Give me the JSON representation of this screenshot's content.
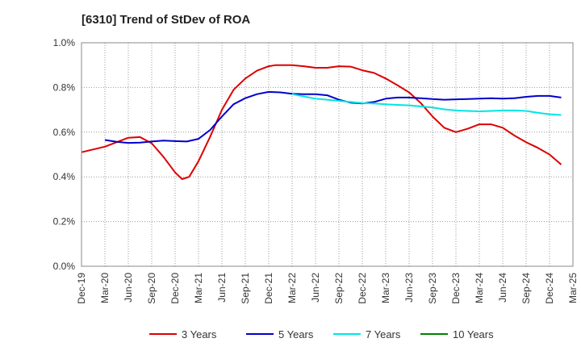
{
  "chart_data": {
    "type": "line",
    "title": "[6310]  Trend of StDev of ROA",
    "xlabel": "",
    "ylabel": "",
    "x_ticks": [
      "Dec-19",
      "Mar-20",
      "Jun-20",
      "Sep-20",
      "Dec-20",
      "Mar-21",
      "Jun-21",
      "Sep-21",
      "Dec-21",
      "Mar-22",
      "Jun-22",
      "Sep-22",
      "Dec-22",
      "Mar-23",
      "Jun-23",
      "Sep-23",
      "Dec-23",
      "Mar-24",
      "Jun-24",
      "Sep-24",
      "Dec-24",
      "Mar-25"
    ],
    "y_ticks": [
      "0.0%",
      "0.2%",
      "0.4%",
      "0.6%",
      "0.8%",
      "1.0%"
    ],
    "ylim": [
      0,
      1.0
    ],
    "grid": true,
    "legend_position": "bottom",
    "series": [
      {
        "name": "3 Years",
        "color": "#dd0000",
        "points": [
          [
            0,
            0.51
          ],
          [
            1,
            0.535
          ],
          [
            2,
            0.575
          ],
          [
            2.5,
            0.578
          ],
          [
            3,
            0.55
          ],
          [
            3.5,
            0.49
          ],
          [
            4,
            0.42
          ],
          [
            4.3,
            0.39
          ],
          [
            4.6,
            0.4
          ],
          [
            5,
            0.47
          ],
          [
            5.5,
            0.58
          ],
          [
            6,
            0.7
          ],
          [
            6.5,
            0.79
          ],
          [
            7,
            0.84
          ],
          [
            7.5,
            0.875
          ],
          [
            8,
            0.895
          ],
          [
            8.3,
            0.9
          ],
          [
            8.6,
            0.9
          ],
          [
            9,
            0.9
          ],
          [
            9.5,
            0.895
          ],
          [
            10,
            0.888
          ],
          [
            10.5,
            0.888
          ],
          [
            11,
            0.895
          ],
          [
            11.5,
            0.893
          ],
          [
            12,
            0.877
          ],
          [
            12.5,
            0.865
          ],
          [
            13,
            0.84
          ],
          [
            13.5,
            0.81
          ],
          [
            14,
            0.778
          ],
          [
            14.5,
            0.73
          ],
          [
            15,
            0.67
          ],
          [
            15.5,
            0.62
          ],
          [
            16,
            0.6
          ],
          [
            16.5,
            0.615
          ],
          [
            17,
            0.635
          ],
          [
            17.5,
            0.635
          ],
          [
            18,
            0.62
          ],
          [
            18.5,
            0.585
          ],
          [
            19,
            0.555
          ],
          [
            19.5,
            0.53
          ],
          [
            20,
            0.5
          ],
          [
            20.5,
            0.455
          ]
        ]
      },
      {
        "name": "5 Years",
        "color": "#0000cc",
        "points": [
          [
            1,
            0.565
          ],
          [
            1.5,
            0.557
          ],
          [
            2,
            0.552
          ],
          [
            2.5,
            0.553
          ],
          [
            3,
            0.558
          ],
          [
            3.5,
            0.562
          ],
          [
            4,
            0.56
          ],
          [
            4.5,
            0.558
          ],
          [
            5,
            0.57
          ],
          [
            5.5,
            0.61
          ],
          [
            6,
            0.67
          ],
          [
            6.5,
            0.725
          ],
          [
            7,
            0.752
          ],
          [
            7.5,
            0.77
          ],
          [
            8,
            0.78
          ],
          [
            8.5,
            0.778
          ],
          [
            9,
            0.772
          ],
          [
            9.5,
            0.77
          ],
          [
            10,
            0.77
          ],
          [
            10.5,
            0.765
          ],
          [
            11,
            0.745
          ],
          [
            11.5,
            0.732
          ],
          [
            12,
            0.728
          ],
          [
            12.5,
            0.735
          ],
          [
            13,
            0.75
          ],
          [
            13.5,
            0.755
          ],
          [
            14,
            0.755
          ],
          [
            14.5,
            0.752
          ],
          [
            15,
            0.748
          ],
          [
            15.5,
            0.745
          ],
          [
            16,
            0.747
          ],
          [
            16.5,
            0.748
          ],
          [
            17,
            0.75
          ],
          [
            17.5,
            0.752
          ],
          [
            18,
            0.75
          ],
          [
            18.5,
            0.752
          ],
          [
            19,
            0.758
          ],
          [
            19.5,
            0.762
          ],
          [
            20,
            0.762
          ],
          [
            20.5,
            0.755
          ]
        ]
      },
      {
        "name": "7 Years",
        "color": "#00e5e5",
        "points": [
          [
            9,
            0.77
          ],
          [
            9.5,
            0.76
          ],
          [
            10,
            0.75
          ],
          [
            10.5,
            0.745
          ],
          [
            11,
            0.74
          ],
          [
            11.5,
            0.735
          ],
          [
            12,
            0.73
          ],
          [
            12.5,
            0.728
          ],
          [
            13,
            0.725
          ],
          [
            13.5,
            0.722
          ],
          [
            14,
            0.72
          ],
          [
            14.5,
            0.715
          ],
          [
            15,
            0.71
          ],
          [
            15.5,
            0.702
          ],
          [
            16,
            0.697
          ],
          [
            16.5,
            0.695
          ],
          [
            17,
            0.693
          ],
          [
            17.5,
            0.695
          ],
          [
            18,
            0.697
          ],
          [
            18.5,
            0.697
          ],
          [
            19,
            0.695
          ],
          [
            19.5,
            0.687
          ],
          [
            20,
            0.68
          ],
          [
            20.5,
            0.677
          ]
        ]
      },
      {
        "name": "10 Years",
        "color": "#008000",
        "points": []
      }
    ]
  }
}
